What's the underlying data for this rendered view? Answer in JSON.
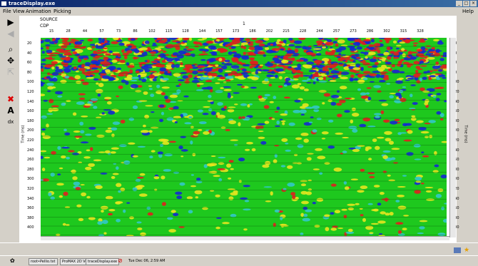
{
  "window": {
    "title": "traceDisplay.exe"
  },
  "menu": {
    "file": "File",
    "view": "View",
    "animation": "Animation",
    "picking": "Picking",
    "help": "Help"
  },
  "plot": {
    "source_label": "SOURCE",
    "cdp_label": "CDP",
    "source_value": "1",
    "x_ticks": [
      "15",
      "28",
      "44",
      "57",
      "73",
      "86",
      "102",
      "115",
      "128",
      "144",
      "157",
      "173",
      "186",
      "202",
      "215",
      "228",
      "244",
      "257",
      "273",
      "286",
      "302",
      "315",
      "328"
    ],
    "y_ticks": [
      "20",
      "40",
      "60",
      "80",
      "100",
      "120",
      "140",
      "160",
      "180",
      "200",
      "220",
      "240",
      "260",
      "280",
      "300",
      "320",
      "340",
      "360",
      "380",
      "400"
    ],
    "y_label": "Time (ms)",
    "colors": {
      "background": "#1ec81e",
      "red": "#e11e1e",
      "blue": "#1428d2",
      "yellow": "#e6e61e",
      "cyan": "#32c8c8"
    }
  },
  "taskbar": {
    "items": [
      "root•Pellio.txt",
      "ProMAX 2D Ve",
      "traceDisplay.exe"
    ],
    "clock": "Tue Dec 06, 2:59 AM"
  }
}
